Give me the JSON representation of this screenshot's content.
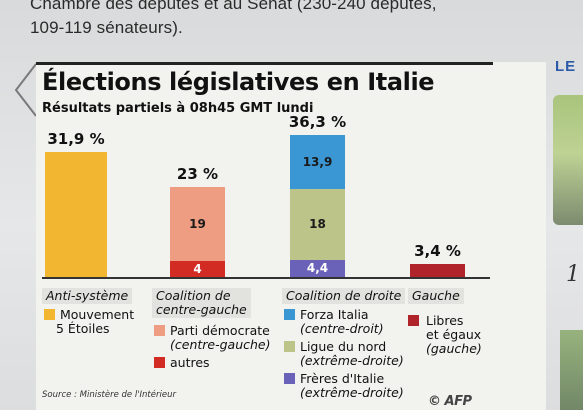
{
  "article": {
    "line1": "Chambre des députés et au Sénat (230-240 députés,",
    "line2": "109-119 sénateurs)."
  },
  "right_panel": {
    "label": "LE",
    "number": "1"
  },
  "infographic": {
    "title": "Élections législatives en Italie",
    "subtitle": "Résultats partiels à 08h45 GMT lundi",
    "source": "Source : Ministère de l'Intérieur",
    "logo": "© AFP"
  },
  "colors": {
    "m5s": "#f2b630",
    "pd": "#ee9d83",
    "autres_cg": "#d22b23",
    "forza": "#3a97d4",
    "lega": "#bcc48a",
    "fdi": "#6a62b8",
    "libres": "#b0232a"
  },
  "chart_data": {
    "type": "bar",
    "stacked": true,
    "categories": [
      "Anti-système",
      "Coalition de centre-gauche",
      "Coalition de droite",
      "Gauche"
    ],
    "totals": [
      "31,9 %",
      "23 %",
      "36,3 %",
      "3,4 %"
    ],
    "total_values": [
      31.9,
      23,
      36.3,
      3.4
    ],
    "series": [
      {
        "name": "Mouvement 5 Étoiles",
        "group": 0,
        "value": 31.9,
        "label": "",
        "color_key": "m5s"
      },
      {
        "name": "autres",
        "group": 1,
        "value": 4,
        "label": "4",
        "color_key": "autres_cg"
      },
      {
        "name": "Parti démocrate",
        "group": 1,
        "value": 19,
        "label": "19",
        "color_key": "pd"
      },
      {
        "name": "Frères d'Italie",
        "group": 2,
        "value": 4.4,
        "label": "4,4",
        "color_key": "fdi"
      },
      {
        "name": "Ligue du nord",
        "group": 2,
        "value": 18,
        "label": "18",
        "color_key": "lega"
      },
      {
        "name": "Forza Italia",
        "group": 2,
        "value": 13.9,
        "label": "13,9",
        "color_key": "forza"
      },
      {
        "name": "Libres et égaux",
        "group": 3,
        "value": 3.4,
        "label": "",
        "color_key": "libres"
      }
    ],
    "ylim": [
      0,
      40
    ],
    "legend": [
      {
        "head": "Anti-système",
        "items": [
          {
            "name": "Mouvement",
            "name2": "5 Étoiles",
            "sub": "",
            "sub2": "",
            "color_key": "m5s"
          }
        ]
      },
      {
        "head": "Coalition de",
        "head2": "centre-gauche",
        "items": [
          {
            "name": "Parti démocrate",
            "name2": "",
            "sub": "(centre-gauche)",
            "sub2": "",
            "color_key": "pd"
          },
          {
            "name": "autres",
            "name2": "",
            "sub": "",
            "sub2": "",
            "color_key": "autres_cg"
          }
        ]
      },
      {
        "head": "Coalition de droite",
        "head2": "",
        "items": [
          {
            "name": "Forza Italia",
            "name2": "",
            "sub": "(centre-droit)",
            "sub2": "",
            "color_key": "forza"
          },
          {
            "name": "Ligue du nord",
            "name2": "",
            "sub": "(extrême-droite)",
            "sub2": "",
            "color_key": "lega"
          },
          {
            "name": "Frères d'Italie",
            "name2": "",
            "sub": "(extrême-droite)",
            "sub2": "",
            "color_key": "fdi"
          }
        ]
      },
      {
        "head": "Gauche",
        "head2": "",
        "items": [
          {
            "name": "Libres",
            "name2": "et égaux",
            "sub": "(gauche)",
            "sub2": "",
            "color_key": "libres"
          }
        ]
      }
    ]
  }
}
